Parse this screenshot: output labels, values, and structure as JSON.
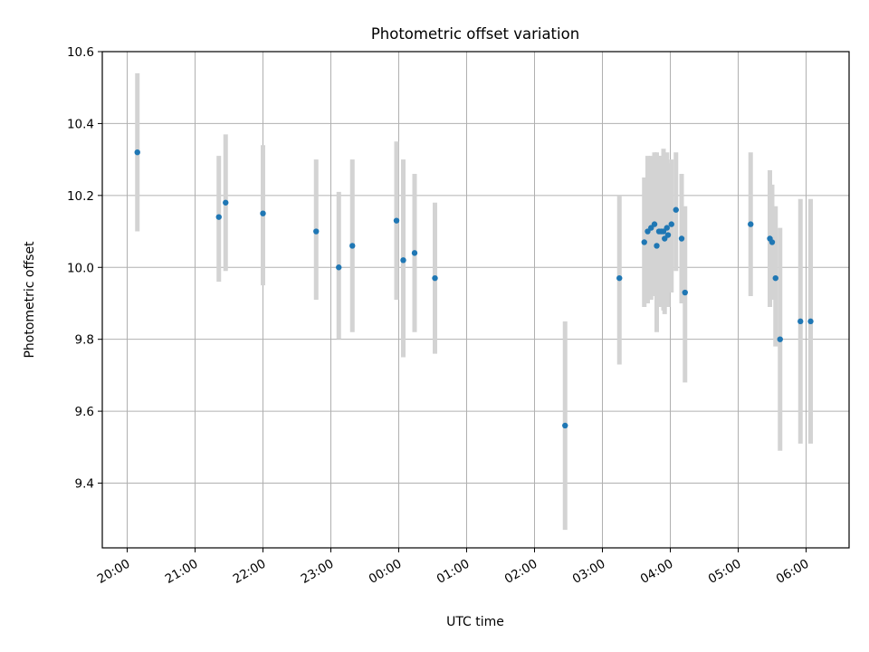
{
  "chart_data": {
    "type": "scatter",
    "title": "Photometric offset variation",
    "xlabel": "UTC time",
    "ylabel": "Photometric offset",
    "xlim": [
      "19:38",
      "06:38"
    ],
    "ylim": [
      9.22,
      10.6
    ],
    "grid": true,
    "x_ticks": [
      "20:00",
      "21:00",
      "22:00",
      "23:00",
      "00:00",
      "01:00",
      "02:00",
      "03:00",
      "04:00",
      "05:00",
      "06:00"
    ],
    "y_ticks": [
      "9.4",
      "9.6",
      "9.8",
      "10.0",
      "10.2",
      "10.4",
      "10.6"
    ],
    "marker_color": "#1f77b4",
    "errorbar_color": "#d3d3d3",
    "points": [
      {
        "t": "20:09",
        "y": 10.32,
        "lo": 10.1,
        "hi": 10.54
      },
      {
        "t": "21:21",
        "y": 10.14,
        "lo": 9.96,
        "hi": 10.31
      },
      {
        "t": "21:27",
        "y": 10.18,
        "lo": 9.99,
        "hi": 10.37
      },
      {
        "t": "22:00",
        "y": 10.15,
        "lo": 9.95,
        "hi": 10.34
      },
      {
        "t": "22:47",
        "y": 10.1,
        "lo": 9.91,
        "hi": 10.3
      },
      {
        "t": "23:07",
        "y": 10.0,
        "lo": 9.8,
        "hi": 10.21
      },
      {
        "t": "23:19",
        "y": 10.06,
        "lo": 9.82,
        "hi": 10.3
      },
      {
        "t": "23:58",
        "y": 10.13,
        "lo": 9.91,
        "hi": 10.35
      },
      {
        "t": "00:04",
        "y": 10.02,
        "lo": 9.75,
        "hi": 10.3
      },
      {
        "t": "00:14",
        "y": 10.04,
        "lo": 9.82,
        "hi": 10.26
      },
      {
        "t": "00:32",
        "y": 9.97,
        "lo": 9.76,
        "hi": 10.18
      },
      {
        "t": "02:27",
        "y": 9.56,
        "lo": 9.27,
        "hi": 9.85
      },
      {
        "t": "03:15",
        "y": 9.97,
        "lo": 9.73,
        "hi": 10.2
      },
      {
        "t": "03:37",
        "y": 10.07,
        "lo": 9.89,
        "hi": 10.25
      },
      {
        "t": "03:40",
        "y": 10.1,
        "lo": 9.9,
        "hi": 10.31
      },
      {
        "t": "03:43",
        "y": 10.11,
        "lo": 9.91,
        "hi": 10.31
      },
      {
        "t": "03:46",
        "y": 10.12,
        "lo": 9.92,
        "hi": 10.32
      },
      {
        "t": "03:48",
        "y": 10.06,
        "lo": 9.82,
        "hi": 10.32
      },
      {
        "t": "03:50",
        "y": 10.1,
        "lo": 9.9,
        "hi": 10.31
      },
      {
        "t": "03:52",
        "y": 10.1,
        "lo": 9.89,
        "hi": 10.31
      },
      {
        "t": "03:54",
        "y": 10.1,
        "lo": 9.88,
        "hi": 10.33
      },
      {
        "t": "03:55",
        "y": 10.08,
        "lo": 9.87,
        "hi": 10.3
      },
      {
        "t": "03:57",
        "y": 10.11,
        "lo": 9.92,
        "hi": 10.32
      },
      {
        "t": "03:58",
        "y": 10.09,
        "lo": 9.89,
        "hi": 10.29
      },
      {
        "t": "04:01",
        "y": 10.12,
        "lo": 9.93,
        "hi": 10.3
      },
      {
        "t": "04:05",
        "y": 10.16,
        "lo": 9.99,
        "hi": 10.32
      },
      {
        "t": "04:10",
        "y": 10.08,
        "lo": 9.9,
        "hi": 10.26
      },
      {
        "t": "04:13",
        "y": 9.93,
        "lo": 9.68,
        "hi": 10.17
      },
      {
        "t": "05:11",
        "y": 10.12,
        "lo": 9.92,
        "hi": 10.32
      },
      {
        "t": "05:28",
        "y": 10.08,
        "lo": 9.89,
        "hi": 10.27
      },
      {
        "t": "05:30",
        "y": 10.07,
        "lo": 9.91,
        "hi": 10.23
      },
      {
        "t": "05:33",
        "y": 9.97,
        "lo": 9.78,
        "hi": 10.17
      },
      {
        "t": "05:37",
        "y": 9.8,
        "lo": 9.49,
        "hi": 10.11
      },
      {
        "t": "05:55",
        "y": 9.85,
        "lo": 9.51,
        "hi": 10.19
      },
      {
        "t": "06:04",
        "y": 9.85,
        "lo": 9.51,
        "hi": 10.19
      }
    ]
  }
}
